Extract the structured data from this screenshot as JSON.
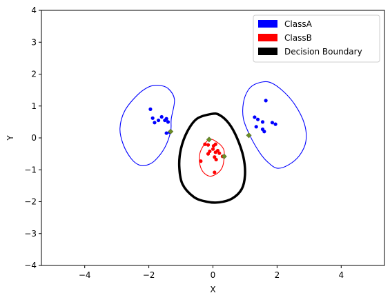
{
  "chart_data": {
    "type": "scatter",
    "title": "",
    "xlabel": "X",
    "ylabel": "Y",
    "xlim": [
      -5.35,
      5.35
    ],
    "ylim": [
      -4,
      4
    ],
    "xticks": [
      -4,
      -2,
      0,
      2,
      4
    ],
    "xtick_labels": [
      "−4",
      "−2",
      "0",
      "2",
      "4"
    ],
    "yticks": [
      -4,
      -3,
      -2,
      -1,
      0,
      1,
      2,
      3,
      4
    ],
    "ytick_labels": [
      "−4",
      "−3",
      "−2",
      "−1",
      "0",
      "1",
      "2",
      "3",
      "4"
    ],
    "grid": false,
    "legend_position": "top-right",
    "legend": [
      {
        "label": "ClassA",
        "color": "#0000ff"
      },
      {
        "label": "ClassB",
        "color": "#ff0000"
      },
      {
        "label": "Decision Boundary",
        "color": "#000000"
      }
    ],
    "series": [
      {
        "class": "ClassA",
        "color": "#0000ff",
        "points": [
          [
            -1.95,
            0.9
          ],
          [
            -1.88,
            0.62
          ],
          [
            -1.82,
            0.48
          ],
          [
            -1.7,
            0.55
          ],
          [
            -1.6,
            0.66
          ],
          [
            -1.5,
            0.55
          ],
          [
            -1.45,
            0.6
          ],
          [
            -1.4,
            0.5
          ],
          [
            -1.45,
            0.15
          ],
          [
            -1.35,
            0.18
          ],
          [
            1.3,
            0.65
          ],
          [
            1.4,
            0.58
          ],
          [
            1.55,
            0.5
          ],
          [
            1.35,
            0.35
          ],
          [
            1.65,
            1.17
          ],
          [
            1.55,
            0.27
          ],
          [
            1.6,
            0.2
          ],
          [
            1.85,
            0.48
          ],
          [
            1.95,
            0.43
          ]
        ]
      },
      {
        "class": "ClassB",
        "color": "#ff0000",
        "points": [
          [
            -0.25,
            -0.2
          ],
          [
            -0.15,
            -0.22
          ],
          [
            -0.1,
            -0.42
          ],
          [
            0.02,
            -0.25
          ],
          [
            0.0,
            -0.35
          ],
          [
            0.08,
            -0.45
          ],
          [
            0.15,
            -0.4
          ],
          [
            0.2,
            -0.48
          ],
          [
            0.05,
            -0.6
          ],
          [
            0.1,
            -0.68
          ],
          [
            -0.15,
            -0.5
          ],
          [
            0.3,
            -0.58
          ],
          [
            -0.38,
            -0.73
          ],
          [
            0.05,
            -1.08
          ],
          [
            0.08,
            -0.2
          ]
        ]
      }
    ],
    "support_vectors": [
      {
        "x": -1.32,
        "y": 0.2
      },
      {
        "x": 1.12,
        "y": 0.08
      },
      {
        "x": -0.12,
        "y": -0.05
      },
      {
        "x": 0.35,
        "y": -0.58
      }
    ],
    "contours": [
      {
        "name": "ClassA left contour",
        "color": "#0000ff",
        "points": [
          [
            -1.7,
            1.65
          ],
          [
            -1.4,
            1.55
          ],
          [
            -1.2,
            1.2
          ],
          [
            -1.3,
            0.6
          ],
          [
            -1.32,
            0.2
          ],
          [
            -1.5,
            -0.3
          ],
          [
            -1.8,
            -0.7
          ],
          [
            -2.05,
            -0.85
          ],
          [
            -2.3,
            -0.85
          ],
          [
            -2.55,
            -0.65
          ],
          [
            -2.8,
            -0.2
          ],
          [
            -2.9,
            0.3
          ],
          [
            -2.75,
            0.85
          ],
          [
            -2.35,
            1.35
          ],
          [
            -2.0,
            1.6
          ]
        ]
      },
      {
        "name": "ClassA right contour",
        "color": "#0000ff",
        "points": [
          [
            1.35,
            1.7
          ],
          [
            1.75,
            1.75
          ],
          [
            2.15,
            1.5
          ],
          [
            2.55,
            1.05
          ],
          [
            2.85,
            0.45
          ],
          [
            2.9,
            -0.1
          ],
          [
            2.7,
            -0.55
          ],
          [
            2.35,
            -0.85
          ],
          [
            2.0,
            -0.95
          ],
          [
            1.7,
            -0.75
          ],
          [
            1.45,
            -0.45
          ],
          [
            1.15,
            0.08
          ],
          [
            0.95,
            0.6
          ],
          [
            0.95,
            1.1
          ],
          [
            1.1,
            1.5
          ]
        ]
      },
      {
        "name": "ClassB contour",
        "color": "#ff0000",
        "points": [
          [
            -0.12,
            -0.05
          ],
          [
            0.15,
            -0.15
          ],
          [
            0.33,
            -0.35
          ],
          [
            0.35,
            -0.58
          ],
          [
            0.3,
            -0.9
          ],
          [
            0.15,
            -1.1
          ],
          [
            -0.1,
            -1.2
          ],
          [
            -0.32,
            -1.05
          ],
          [
            -0.42,
            -0.75
          ],
          [
            -0.38,
            -0.4
          ]
        ]
      },
      {
        "name": "Decision Boundary",
        "color": "#000000",
        "points": [
          [
            -0.05,
            0.75
          ],
          [
            0.2,
            0.72
          ],
          [
            0.5,
            0.45
          ],
          [
            0.75,
            0.0
          ],
          [
            0.95,
            -0.6
          ],
          [
            1.0,
            -1.15
          ],
          [
            0.9,
            -1.6
          ],
          [
            0.6,
            -1.9
          ],
          [
            0.2,
            -2.02
          ],
          [
            -0.2,
            -2.0
          ],
          [
            -0.6,
            -1.85
          ],
          [
            -0.95,
            -1.45
          ],
          [
            -1.05,
            -0.9
          ],
          [
            -1.0,
            -0.35
          ],
          [
            -0.8,
            0.2
          ],
          [
            -0.5,
            0.6
          ]
        ]
      }
    ]
  }
}
